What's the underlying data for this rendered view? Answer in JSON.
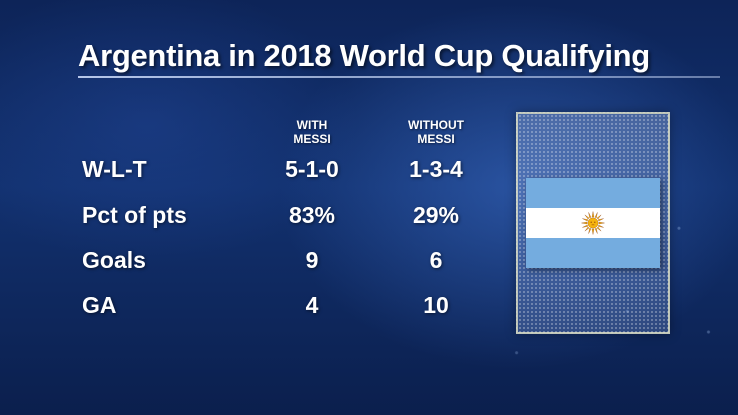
{
  "title": "Argentina in 2018 World Cup Qualifying",
  "columns": {
    "with": [
      "WITH",
      "MESSI"
    ],
    "without": [
      "WITHOUT",
      "MESSI"
    ]
  },
  "rows": [
    {
      "label": "W-L-T",
      "with": "5-1-0",
      "without": "1-3-4"
    },
    {
      "label": "Pct of pts",
      "with": "83%",
      "without": "29%"
    },
    {
      "label": "Goals",
      "with": "9",
      "without": "6"
    },
    {
      "label": "GA",
      "with": "4",
      "without": "10"
    }
  ],
  "flag": {
    "icon": "argentina-flag-icon",
    "colors": {
      "celeste": "#74acdf",
      "white": "#ffffff",
      "sun": "#f6b40e"
    }
  }
}
